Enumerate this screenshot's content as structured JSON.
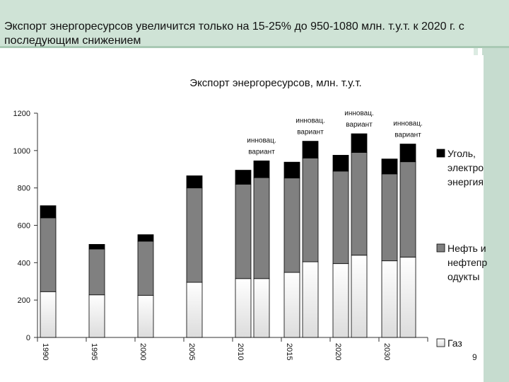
{
  "page": {
    "title": "Экспорт энергоресурсов увеличится только на 15-25% до 950-1080 млн. т.у.т. к 2020 г. с последующим снижением",
    "page_number": "9"
  },
  "chart_data": {
    "type": "bar",
    "stacked": true,
    "title": "Экспорт энергоресурсов, млн. т.у.т.",
    "ylim": [
      0,
      1200
    ],
    "yticks": [
      0,
      200,
      400,
      600,
      800,
      1000,
      1200
    ],
    "grid": false,
    "legend_position": "right",
    "groups": [
      "1990",
      "1995",
      "2000",
      "2005",
      "2010",
      "2015",
      "2020",
      "2030"
    ],
    "bars": [
      {
        "group": "1990",
        "values": [
          245,
          395,
          65
        ],
        "annotation": ""
      },
      {
        "group": "1995",
        "values": [
          228,
          245,
          25
        ],
        "annotation": ""
      },
      {
        "group": "2000",
        "values": [
          225,
          290,
          35
        ],
        "annotation": ""
      },
      {
        "group": "2005",
        "values": [
          295,
          505,
          65
        ],
        "annotation": ""
      },
      {
        "group": "2010",
        "values": [
          315,
          505,
          75
        ],
        "annotation": ""
      },
      {
        "group": "2010",
        "values": [
          315,
          540,
          90
        ],
        "annotation": "инновац. вариант"
      },
      {
        "group": "2015",
        "values": [
          348,
          505,
          85
        ],
        "annotation": ""
      },
      {
        "group": "2015",
        "values": [
          405,
          555,
          90
        ],
        "annotation": "инновац. вариант"
      },
      {
        "group": "2020",
        "values": [
          395,
          495,
          85
        ],
        "annotation": ""
      },
      {
        "group": "2020",
        "values": [
          440,
          550,
          100
        ],
        "annotation": "инновац. вариант"
      },
      {
        "group": "2030",
        "values": [
          410,
          465,
          80
        ],
        "annotation": ""
      },
      {
        "group": "2030",
        "values": [
          430,
          510,
          95
        ],
        "annotation": "инновац. вариант"
      }
    ],
    "series": [
      {
        "name": "Газ",
        "color": "#e8e8e8"
      },
      {
        "name": "Нефть и нефтепродукты",
        "color": "#808080"
      },
      {
        "name": "Уголь, электроэнергия",
        "color": "#000000"
      }
    ],
    "legend": [
      {
        "lines": [
          "Уголь,",
          "электро",
          "энергия"
        ],
        "color": "#000000"
      },
      {
        "lines": [
          "Нефть и",
          "нефтепр",
          "одукты"
        ],
        "color": "#808080"
      },
      {
        "lines": [
          "Газ"
        ],
        "color": "#e8e8e8"
      }
    ]
  }
}
